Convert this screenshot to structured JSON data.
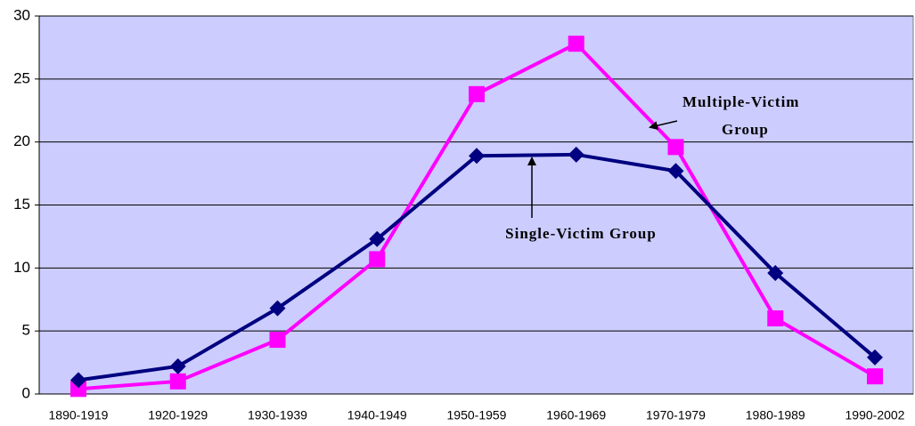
{
  "chart_data": {
    "type": "line",
    "categories": [
      "1890-1919",
      "1920-1929",
      "1930-1939",
      "1940-1949",
      "1950-1959",
      "1960-1969",
      "1970-1979",
      "1980-1989",
      "1990-2002"
    ],
    "series": [
      {
        "color": "#000080",
        "marker": "diamond",
        "values": [
          1.1,
          2.2,
          6.8,
          12.3,
          18.9,
          19.0,
          17.7,
          9.6,
          2.9
        ]
      },
      {
        "color": "#ff00ff",
        "marker": "square",
        "values": [
          0.4,
          1.0,
          4.3,
          10.7,
          23.8,
          27.8,
          19.6,
          6.0,
          1.4
        ]
      }
    ],
    "ylim": [
      0,
      30
    ],
    "yticks": [
      0,
      5,
      10,
      15,
      20,
      25,
      30
    ],
    "grid": true,
    "annotations": [
      {
        "lines": [
          "Multiple-Victim",
          "Group"
        ]
      },
      {
        "lines": [
          "Single-Victim Group"
        ]
      }
    ]
  }
}
